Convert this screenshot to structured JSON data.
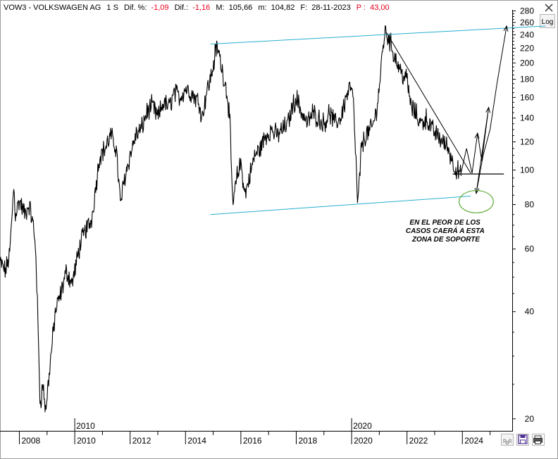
{
  "header": {
    "ticker_name": "VOW3 - VOLKSWAGEN AG",
    "period": "1 S",
    "pct_change_label": "Dif. %:",
    "pct_change_value": "-1,09",
    "change_label": "Dif.:",
    "change_value": "-1,16",
    "max_label": "M:",
    "max_value": "105,66",
    "min_label": "m:",
    "min_value": "104,82",
    "date_label": "F:",
    "date_value": "28-11-2023",
    "p_label": "P :",
    "p_value": "43,00"
  },
  "toolbar": {
    "log_label": "Log",
    "close_icon": "close-icon",
    "chart_icon": "wave-icon",
    "save_icon": "save-icon",
    "print_icon": "printer-icon"
  },
  "colors": {
    "price": "#000000",
    "channel": "#27aed0",
    "projection": "#000000",
    "support_ellipse": "#6bb24a",
    "header_negative": "#e8001c"
  },
  "annotation": {
    "lines": [
      "EN EL PEOR DE LOS",
      "CASOS CAERÁ A ESTA",
      "ZONA DE SOPORTE"
    ]
  },
  "chart_data": {
    "type": "line",
    "y_scale": "log",
    "ylim": [
      18.5,
      282
    ],
    "xlim": [
      2007.3,
      2025.8
    ],
    "y_ticks": [
      20,
      40,
      60,
      80,
      100,
      120,
      140,
      160,
      180,
      200,
      220,
      240,
      260,
      280
    ],
    "x_ticks": [
      2008,
      2010,
      2012,
      2014,
      2016,
      2018,
      2020,
      2022,
      2024
    ],
    "x_ticks_upper": [
      2010,
      2020
    ],
    "grid": false,
    "price_keypoints": [
      [
        2007.3,
        55
      ],
      [
        2007.5,
        52
      ],
      [
        2007.65,
        58
      ],
      [
        2007.8,
        90
      ],
      [
        2007.85,
        75
      ],
      [
        2008.0,
        82
      ],
      [
        2008.2,
        75
      ],
      [
        2008.35,
        80
      ],
      [
        2008.5,
        70
      ],
      [
        2008.6,
        58
      ],
      [
        2008.75,
        22
      ],
      [
        2008.85,
        25
      ],
      [
        2008.95,
        21
      ],
      [
        2009.1,
        28
      ],
      [
        2009.3,
        40
      ],
      [
        2009.5,
        45
      ],
      [
        2009.7,
        52
      ],
      [
        2009.9,
        48
      ],
      [
        2010.0,
        52
      ],
      [
        2010.2,
        62
      ],
      [
        2010.4,
        68
      ],
      [
        2010.6,
        72
      ],
      [
        2010.8,
        95
      ],
      [
        2010.9,
        110
      ],
      [
        2011.1,
        115
      ],
      [
        2011.3,
        125
      ],
      [
        2011.5,
        115
      ],
      [
        2011.65,
        80
      ],
      [
        2011.8,
        95
      ],
      [
        2012.0,
        110
      ],
      [
        2012.2,
        125
      ],
      [
        2012.4,
        130
      ],
      [
        2012.6,
        145
      ],
      [
        2012.8,
        152
      ],
      [
        2013.0,
        140
      ],
      [
        2013.2,
        155
      ],
      [
        2013.4,
        150
      ],
      [
        2013.6,
        165
      ],
      [
        2013.8,
        160
      ],
      [
        2014.0,
        170
      ],
      [
        2014.2,
        165
      ],
      [
        2014.5,
        155
      ],
      [
        2014.6,
        140
      ],
      [
        2014.75,
        165
      ],
      [
        2014.9,
        180
      ],
      [
        2015.0,
        195
      ],
      [
        2015.1,
        220
      ],
      [
        2015.2,
        215
      ],
      [
        2015.3,
        195
      ],
      [
        2015.4,
        180
      ],
      [
        2015.5,
        165
      ],
      [
        2015.6,
        140
      ],
      [
        2015.65,
        100
      ],
      [
        2015.72,
        80
      ],
      [
        2015.85,
        95
      ],
      [
        2016.0,
        105
      ],
      [
        2016.15,
        85
      ],
      [
        2016.3,
        95
      ],
      [
        2016.5,
        110
      ],
      [
        2016.7,
        115
      ],
      [
        2016.9,
        125
      ],
      [
        2017.1,
        130
      ],
      [
        2017.3,
        125
      ],
      [
        2017.5,
        130
      ],
      [
        2017.7,
        135
      ],
      [
        2017.85,
        150
      ],
      [
        2018.0,
        160
      ],
      [
        2018.2,
        145
      ],
      [
        2018.4,
        135
      ],
      [
        2018.6,
        145
      ],
      [
        2018.8,
        140
      ],
      [
        2019.0,
        135
      ],
      [
        2019.2,
        145
      ],
      [
        2019.4,
        135
      ],
      [
        2019.6,
        140
      ],
      [
        2019.8,
        160
      ],
      [
        2019.95,
        172
      ],
      [
        2020.05,
        160
      ],
      [
        2020.15,
        110
      ],
      [
        2020.22,
        78
      ],
      [
        2020.35,
        115
      ],
      [
        2020.5,
        125
      ],
      [
        2020.7,
        130
      ],
      [
        2020.85,
        140
      ],
      [
        2021.0,
        170
      ],
      [
        2021.1,
        210
      ],
      [
        2021.2,
        245
      ],
      [
        2021.35,
        235
      ],
      [
        2021.5,
        215
      ],
      [
        2021.7,
        195
      ],
      [
        2021.85,
        185
      ],
      [
        2022.0,
        180
      ],
      [
        2022.15,
        150
      ],
      [
        2022.3,
        145
      ],
      [
        2022.5,
        135
      ],
      [
        2022.7,
        140
      ],
      [
        2022.9,
        130
      ],
      [
        2023.1,
        125
      ],
      [
        2023.3,
        120
      ],
      [
        2023.5,
        115
      ],
      [
        2023.65,
        105
      ],
      [
        2023.8,
        100
      ],
      [
        2023.9,
        98
      ],
      [
        2023.95,
        96
      ]
    ],
    "overlays": {
      "channel_upper": [
        [
          2014.9,
          226
        ],
        [
          2027.0,
          254
        ]
      ],
      "channel_lower": [
        [
          2014.9,
          75
        ],
        [
          2024.3,
          84.5
        ]
      ],
      "downtrend": [
        [
          2021.25,
          244
        ],
        [
          2024.3,
          98
        ]
      ],
      "support_horizontal": [
        [
          2023.65,
          97.5
        ],
        [
          2025.5,
          97.5
        ]
      ],
      "projection_path": [
        [
          2023.95,
          98
        ],
        [
          2024.15,
          115
        ],
        [
          2024.35,
          98
        ],
        [
          2024.55,
          127
        ],
        [
          2024.7,
          106
        ],
        [
          2024.95,
          150
        ],
        [
          2024.5,
          86
        ],
        [
          2024.75,
          110
        ],
        [
          2025.0,
          130
        ],
        [
          2025.25,
          175
        ],
        [
          2025.6,
          254
        ]
      ],
      "support_ellipse": {
        "center": [
          2024.5,
          81.5
        ],
        "x_radius": 0.62,
        "y_ratio": 1.075
      }
    }
  }
}
